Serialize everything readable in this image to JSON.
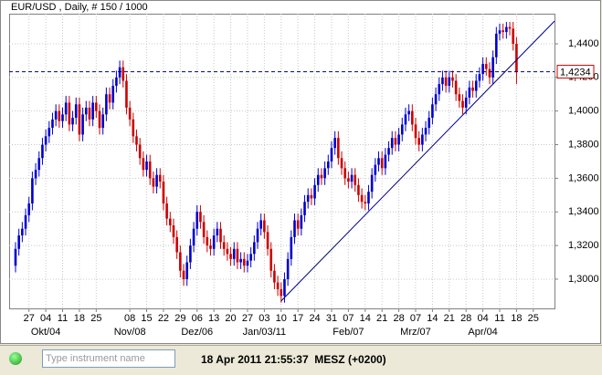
{
  "chart_data": {
    "type": "candlestick",
    "title": "EUR/USD , Daily, # 150 / 1000",
    "up_color": "#0000cc",
    "down_color": "#cc0000",
    "grid": true,
    "xlim": [
      -1.9,
      160.3
    ],
    "ylim": [
      1.2826,
      1.4579
    ],
    "yticks": [
      {
        "value": 1.3,
        "label": "1,3000"
      },
      {
        "value": 1.32,
        "label": "1,3200"
      },
      {
        "value": 1.34,
        "label": "1,3400"
      },
      {
        "value": 1.36,
        "label": "1,3600"
      },
      {
        "value": 1.38,
        "label": "1,3800"
      },
      {
        "value": 1.4,
        "label": "1,4000"
      },
      {
        "value": 1.42,
        "label": "1,4200"
      },
      {
        "value": 1.44,
        "label": "1,4400"
      }
    ],
    "xticks": [
      {
        "value": 4,
        "label": "27"
      },
      {
        "value": 9,
        "label": "04"
      },
      {
        "value": 14,
        "label": "11"
      },
      {
        "value": 19,
        "label": "18"
      },
      {
        "value": 24,
        "label": "25"
      },
      {
        "value": 34,
        "label": "08"
      },
      {
        "value": 39,
        "label": "15"
      },
      {
        "value": 44,
        "label": "22"
      },
      {
        "value": 49,
        "label": "29"
      },
      {
        "value": 54,
        "label": "06"
      },
      {
        "value": 59,
        "label": "13"
      },
      {
        "value": 64,
        "label": "20"
      },
      {
        "value": 69,
        "label": "27"
      },
      {
        "value": 74,
        "label": "03"
      },
      {
        "value": 79,
        "label": "10"
      },
      {
        "value": 84,
        "label": "17"
      },
      {
        "value": 89,
        "label": "24"
      },
      {
        "value": 94,
        "label": "31"
      },
      {
        "value": 99,
        "label": "07"
      },
      {
        "value": 104,
        "label": "14"
      },
      {
        "value": 109,
        "label": "21"
      },
      {
        "value": 114,
        "label": "28"
      },
      {
        "value": 119,
        "label": "07"
      },
      {
        "value": 124,
        "label": "14"
      },
      {
        "value": 129,
        "label": "21"
      },
      {
        "value": 134,
        "label": "28"
      },
      {
        "value": 139,
        "label": "04"
      },
      {
        "value": 144,
        "label": "11"
      },
      {
        "value": 149,
        "label": "18"
      },
      {
        "value": 154,
        "label": "25"
      }
    ],
    "month_ticks": [
      {
        "value": 9,
        "label": "Okt/04"
      },
      {
        "value": 34,
        "label": "Nov/08"
      },
      {
        "value": 54,
        "label": "Dez/06"
      },
      {
        "value": 74,
        "label": "Jan/03/11"
      },
      {
        "value": 99,
        "label": "Feb/07"
      },
      {
        "value": 119,
        "label": "Mrz/07"
      },
      {
        "value": 139,
        "label": "Apr/04"
      }
    ],
    "current_price": {
      "value": 1.4234,
      "label": "1,4234"
    },
    "trend_line": {
      "x": [
        79,
        160.3
      ],
      "y": [
        1.287,
        1.4535
      ]
    },
    "candles": [
      [
        1.308,
        1.322,
        1.304,
        1.318
      ],
      [
        1.318,
        1.33,
        1.314,
        1.326
      ],
      [
        1.326,
        1.334,
        1.322,
        1.33
      ],
      [
        1.33,
        1.342,
        1.326,
        1.338
      ],
      [
        1.338,
        1.349,
        1.334,
        1.345
      ],
      [
        1.345,
        1.364,
        1.341,
        1.36
      ],
      [
        1.36,
        1.369,
        1.356,
        1.365
      ],
      [
        1.365,
        1.376,
        1.361,
        1.372
      ],
      [
        1.372,
        1.384,
        1.368,
        1.38
      ],
      [
        1.38,
        1.389,
        1.376,
        1.385
      ],
      [
        1.385,
        1.394,
        1.381,
        1.39
      ],
      [
        1.39,
        1.399,
        1.386,
        1.395
      ],
      [
        1.395,
        1.404,
        1.391,
        1.4
      ],
      [
        1.4,
        1.404,
        1.39,
        1.394
      ],
      [
        1.394,
        1.402,
        1.39,
        1.398
      ],
      [
        1.398,
        1.409,
        1.394,
        1.405
      ],
      [
        1.405,
        1.409,
        1.388,
        1.392
      ],
      [
        1.392,
        1.4,
        1.388,
        1.396
      ],
      [
        1.396,
        1.408,
        1.392,
        1.404
      ],
      [
        1.404,
        1.408,
        1.382,
        1.386
      ],
      [
        1.386,
        1.402,
        1.382,
        1.398
      ],
      [
        1.398,
        1.406,
        1.394,
        1.402
      ],
      [
        1.402,
        1.406,
        1.391,
        1.395
      ],
      [
        1.395,
        1.409,
        1.391,
        1.405
      ],
      [
        1.405,
        1.409,
        1.396,
        1.4
      ],
      [
        1.4,
        1.404,
        1.386,
        1.39
      ],
      [
        1.39,
        1.402,
        1.386,
        1.398
      ],
      [
        1.398,
        1.414,
        1.394,
        1.41
      ],
      [
        1.41,
        1.414,
        1.401,
        1.405
      ],
      [
        1.405,
        1.419,
        1.401,
        1.415
      ],
      [
        1.415,
        1.424,
        1.411,
        1.42
      ],
      [
        1.42,
        1.43,
        1.416,
        1.426
      ],
      [
        1.426,
        1.43,
        1.414,
        1.418
      ],
      [
        1.418,
        1.422,
        1.398,
        1.402
      ],
      [
        1.402,
        1.406,
        1.391,
        1.395
      ],
      [
        1.395,
        1.399,
        1.381,
        1.385
      ],
      [
        1.385,
        1.389,
        1.376,
        1.38
      ],
      [
        1.38,
        1.384,
        1.368,
        1.372
      ],
      [
        1.372,
        1.376,
        1.361,
        1.365
      ],
      [
        1.365,
        1.374,
        1.361,
        1.37
      ],
      [
        1.37,
        1.374,
        1.356,
        1.36
      ],
      [
        1.36,
        1.364,
        1.351,
        1.355
      ],
      [
        1.355,
        1.366,
        1.351,
        1.362
      ],
      [
        1.362,
        1.366,
        1.354,
        1.358
      ],
      [
        1.358,
        1.362,
        1.341,
        1.345
      ],
      [
        1.345,
        1.349,
        1.332,
        1.336
      ],
      [
        1.336,
        1.34,
        1.328,
        1.332
      ],
      [
        1.332,
        1.336,
        1.321,
        1.325
      ],
      [
        1.325,
        1.329,
        1.312,
        1.316
      ],
      [
        1.316,
        1.32,
        1.301,
        1.305
      ],
      [
        1.305,
        1.309,
        1.296,
        1.3
      ],
      [
        1.3,
        1.314,
        1.296,
        1.31
      ],
      [
        1.31,
        1.324,
        1.306,
        1.32
      ],
      [
        1.32,
        1.334,
        1.316,
        1.33
      ],
      [
        1.33,
        1.344,
        1.326,
        1.34
      ],
      [
        1.34,
        1.344,
        1.33,
        1.334
      ],
      [
        1.334,
        1.338,
        1.321,
        1.325
      ],
      [
        1.325,
        1.329,
        1.316,
        1.32
      ],
      [
        1.32,
        1.324,
        1.314,
        1.318
      ],
      [
        1.318,
        1.33,
        1.314,
        1.326
      ],
      [
        1.326,
        1.334,
        1.322,
        1.33
      ],
      [
        1.33,
        1.334,
        1.318,
        1.322
      ],
      [
        1.322,
        1.326,
        1.314,
        1.318
      ],
      [
        1.318,
        1.322,
        1.311,
        1.315
      ],
      [
        1.315,
        1.319,
        1.308,
        1.312
      ],
      [
        1.312,
        1.322,
        1.308,
        1.318
      ],
      [
        1.318,
        1.322,
        1.306,
        1.31
      ],
      [
        1.31,
        1.316,
        1.306,
        1.312
      ],
      [
        1.312,
        1.316,
        1.304,
        1.308
      ],
      [
        1.308,
        1.315,
        1.304,
        1.311
      ],
      [
        1.311,
        1.319,
        1.307,
        1.315
      ],
      [
        1.315,
        1.326,
        1.311,
        1.322
      ],
      [
        1.322,
        1.334,
        1.318,
        1.33
      ],
      [
        1.33,
        1.339,
        1.326,
        1.335
      ],
      [
        1.335,
        1.339,
        1.324,
        1.328
      ],
      [
        1.328,
        1.332,
        1.314,
        1.318
      ],
      [
        1.318,
        1.322,
        1.301,
        1.305
      ],
      [
        1.305,
        1.309,
        1.294,
        1.298
      ],
      [
        1.298,
        1.302,
        1.29,
        1.294
      ],
      [
        1.294,
        1.298,
        1.286,
        1.29
      ],
      [
        1.29,
        1.304,
        1.286,
        1.3
      ],
      [
        1.3,
        1.316,
        1.296,
        1.312
      ],
      [
        1.312,
        1.329,
        1.308,
        1.325
      ],
      [
        1.325,
        1.339,
        1.321,
        1.335
      ],
      [
        1.335,
        1.339,
        1.326,
        1.33
      ],
      [
        1.33,
        1.342,
        1.326,
        1.338
      ],
      [
        1.338,
        1.35,
        1.334,
        1.346
      ],
      [
        1.346,
        1.354,
        1.342,
        1.35
      ],
      [
        1.35,
        1.354,
        1.344,
        1.348
      ],
      [
        1.348,
        1.36,
        1.344,
        1.356
      ],
      [
        1.356,
        1.366,
        1.352,
        1.362
      ],
      [
        1.362,
        1.366,
        1.356,
        1.36
      ],
      [
        1.36,
        1.37,
        1.356,
        1.366
      ],
      [
        1.366,
        1.374,
        1.362,
        1.37
      ],
      [
        1.37,
        1.382,
        1.366,
        1.378
      ],
      [
        1.378,
        1.388,
        1.374,
        1.384
      ],
      [
        1.384,
        1.388,
        1.368,
        1.372
      ],
      [
        1.372,
        1.376,
        1.362,
        1.366
      ],
      [
        1.366,
        1.37,
        1.356,
        1.36
      ],
      [
        1.36,
        1.364,
        1.354,
        1.358
      ],
      [
        1.358,
        1.366,
        1.354,
        1.362
      ],
      [
        1.362,
        1.366,
        1.352,
        1.356
      ],
      [
        1.356,
        1.36,
        1.346,
        1.35
      ],
      [
        1.35,
        1.354,
        1.342,
        1.346
      ],
      [
        1.346,
        1.35,
        1.341,
        1.345
      ],
      [
        1.345,
        1.356,
        1.341,
        1.352
      ],
      [
        1.352,
        1.366,
        1.348,
        1.362
      ],
      [
        1.362,
        1.372,
        1.358,
        1.368
      ],
      [
        1.368,
        1.376,
        1.364,
        1.372
      ],
      [
        1.372,
        1.376,
        1.362,
        1.366
      ],
      [
        1.366,
        1.378,
        1.362,
        1.374
      ],
      [
        1.374,
        1.382,
        1.37,
        1.378
      ],
      [
        1.378,
        1.388,
        1.374,
        1.384
      ],
      [
        1.384,
        1.388,
        1.376,
        1.38
      ],
      [
        1.38,
        1.39,
        1.376,
        1.386
      ],
      [
        1.386,
        1.396,
        1.382,
        1.392
      ],
      [
        1.392,
        1.402,
        1.388,
        1.398
      ],
      [
        1.398,
        1.404,
        1.394,
        1.4
      ],
      [
        1.4,
        1.404,
        1.388,
        1.392
      ],
      [
        1.392,
        1.396,
        1.38,
        1.384
      ],
      [
        1.384,
        1.388,
        1.376,
        1.38
      ],
      [
        1.38,
        1.39,
        1.376,
        1.386
      ],
      [
        1.386,
        1.394,
        1.382,
        1.39
      ],
      [
        1.39,
        1.4,
        1.386,
        1.396
      ],
      [
        1.396,
        1.408,
        1.392,
        1.404
      ],
      [
        1.404,
        1.414,
        1.4,
        1.41
      ],
      [
        1.41,
        1.42,
        1.406,
        1.416
      ],
      [
        1.416,
        1.424,
        1.412,
        1.42
      ],
      [
        1.42,
        1.424,
        1.411,
        1.415
      ],
      [
        1.415,
        1.424,
        1.411,
        1.42
      ],
      [
        1.42,
        1.424,
        1.414,
        1.418
      ],
      [
        1.418,
        1.422,
        1.406,
        1.41
      ],
      [
        1.41,
        1.414,
        1.402,
        1.406
      ],
      [
        1.406,
        1.41,
        1.398,
        1.402
      ],
      [
        1.402,
        1.412,
        1.398,
        1.408
      ],
      [
        1.408,
        1.418,
        1.404,
        1.414
      ],
      [
        1.414,
        1.418,
        1.408,
        1.412
      ],
      [
        1.412,
        1.422,
        1.408,
        1.418
      ],
      [
        1.418,
        1.426,
        1.414,
        1.422
      ],
      [
        1.422,
        1.432,
        1.418,
        1.428
      ],
      [
        1.428,
        1.432,
        1.421,
        1.425
      ],
      [
        1.425,
        1.429,
        1.416,
        1.42
      ],
      [
        1.42,
        1.436,
        1.416,
        1.432
      ],
      [
        1.432,
        1.45,
        1.428,
        1.446
      ],
      [
        1.446,
        1.452,
        1.442,
        1.448
      ],
      [
        1.448,
        1.452,
        1.443,
        1.447
      ],
      [
        1.447,
        1.453,
        1.443,
        1.45
      ],
      [
        1.45,
        1.453,
        1.445,
        1.449
      ],
      [
        1.449,
        1.453,
        1.436,
        1.44
      ],
      [
        1.44,
        1.444,
        1.416,
        1.4234
      ]
    ]
  },
  "status_bar": {
    "search_placeholder": "Type instrument name",
    "clock": "18 Apr 2011 21:55:37  MESZ (+0200)"
  }
}
